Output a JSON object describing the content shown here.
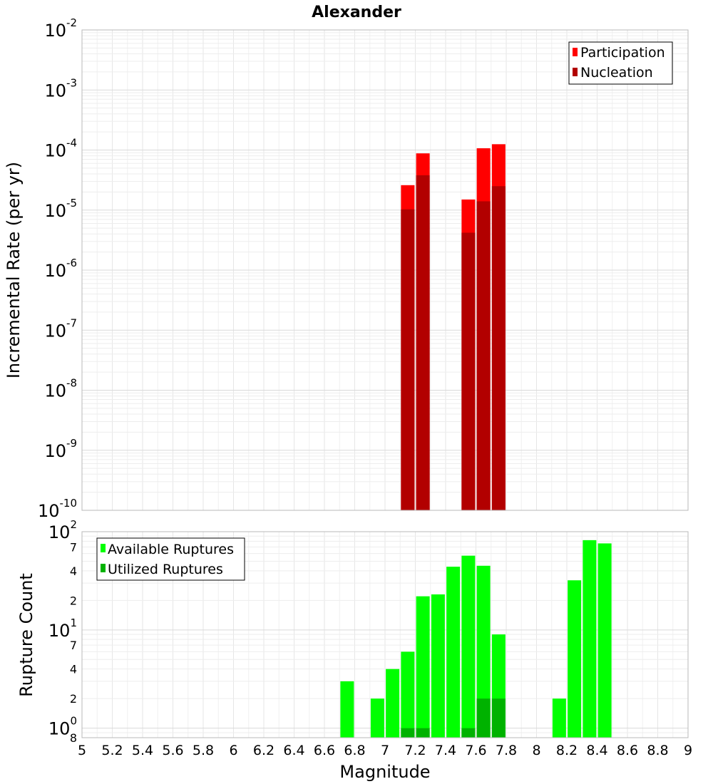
{
  "chart_data": [
    {
      "type": "bar",
      "title": "Alexander",
      "ylabel": "Incremental Rate (per yr)",
      "yscale": "log",
      "ylim": [
        1e-10,
        0.01
      ],
      "xlim": [
        5,
        9
      ],
      "grid": true,
      "legend_position": "top-right",
      "y_ticks": [
        {
          "base": "10",
          "exp": "-2"
        },
        {
          "base": "10",
          "exp": "-3"
        },
        {
          "base": "10",
          "exp": "-4"
        },
        {
          "base": "10",
          "exp": "-5"
        },
        {
          "base": "10",
          "exp": "-6"
        },
        {
          "base": "10",
          "exp": "-7"
        },
        {
          "base": "10",
          "exp": "-8"
        },
        {
          "base": "10",
          "exp": "-9"
        },
        {
          "base": "10",
          "exp": "-10"
        }
      ],
      "series": [
        {
          "name": "Participation",
          "color": "#ff0000",
          "points": [
            {
              "x": 7.15,
              "y": 2.6e-05
            },
            {
              "x": 7.25,
              "y": 8.8e-05
            },
            {
              "x": 7.55,
              "y": 1.5e-05
            },
            {
              "x": 7.65,
              "y": 0.000107
            },
            {
              "x": 7.75,
              "y": 0.000125
            }
          ]
        },
        {
          "name": "Nucleation",
          "color": "#b20000",
          "points": [
            {
              "x": 7.15,
              "y": 1.03e-05
            },
            {
              "x": 7.25,
              "y": 3.8e-05
            },
            {
              "x": 7.55,
              "y": 4.2e-06
            },
            {
              "x": 7.65,
              "y": 1.4e-05
            },
            {
              "x": 7.75,
              "y": 2.5e-05
            }
          ]
        }
      ]
    },
    {
      "type": "bar",
      "ylabel": "Rupture Count",
      "xlabel": "Magnitude",
      "yscale": "log",
      "ylim": [
        0.8,
        100
      ],
      "xlim": [
        5,
        9
      ],
      "grid": true,
      "legend_position": "top-left",
      "x_ticks": [
        "5",
        "5.2",
        "5.4",
        "5.6",
        "5.8",
        "6",
        "6.2",
        "6.4",
        "6.6",
        "6.8",
        "7",
        "7.2",
        "7.4",
        "7.6",
        "7.8",
        "8",
        "8.2",
        "8.4",
        "8.6",
        "8.8",
        "9"
      ],
      "y_major_ticks": [
        {
          "value": 100,
          "base": "10",
          "exp": "2"
        },
        {
          "value": 10,
          "base": "10",
          "exp": "1"
        },
        {
          "value": 1,
          "base": "10",
          "exp": "0"
        }
      ],
      "y_minor_ticks": [
        {
          "value": 70,
          "label": "7"
        },
        {
          "value": 40,
          "label": "4"
        },
        {
          "value": 20,
          "label": "2"
        },
        {
          "value": 7,
          "label": "7"
        },
        {
          "value": 4,
          "label": "4"
        },
        {
          "value": 2,
          "label": "2"
        },
        {
          "value": 0.8,
          "label": "8"
        }
      ],
      "series": [
        {
          "name": "Available Ruptures",
          "color": "#00ff00",
          "points": [
            {
              "x": 6.75,
              "y": 3
            },
            {
              "x": 6.95,
              "y": 2
            },
            {
              "x": 7.05,
              "y": 4
            },
            {
              "x": 7.15,
              "y": 6
            },
            {
              "x": 7.25,
              "y": 22
            },
            {
              "x": 7.35,
              "y": 23
            },
            {
              "x": 7.45,
              "y": 44
            },
            {
              "x": 7.55,
              "y": 57
            },
            {
              "x": 7.65,
              "y": 45
            },
            {
              "x": 7.75,
              "y": 9
            },
            {
              "x": 8.15,
              "y": 2
            },
            {
              "x": 8.25,
              "y": 32
            },
            {
              "x": 8.35,
              "y": 82
            },
            {
              "x": 8.45,
              "y": 76
            }
          ]
        },
        {
          "name": "Utilized Ruptures",
          "color": "#00b200",
          "points": [
            {
              "x": 7.15,
              "y": 1
            },
            {
              "x": 7.25,
              "y": 1
            },
            {
              "x": 7.55,
              "y": 1
            },
            {
              "x": 7.65,
              "y": 2
            },
            {
              "x": 7.75,
              "y": 2
            }
          ]
        }
      ]
    }
  ]
}
